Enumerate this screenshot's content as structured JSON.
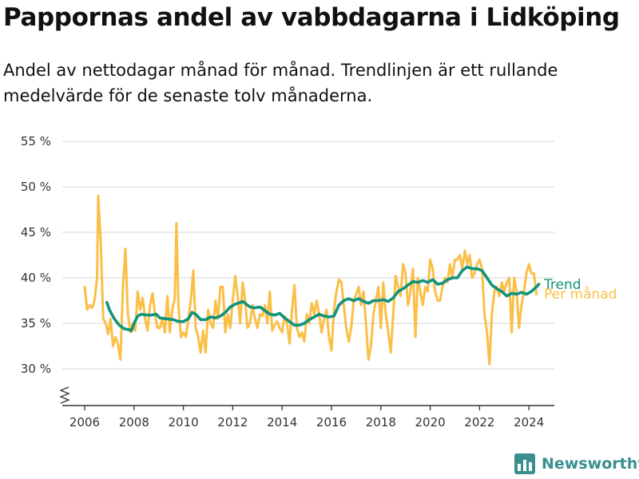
{
  "title": "Pappornas andel av vabbdagarna i Lidköping",
  "subtitle": "Andel av nettodagar månad för månad. Trendlinjen är ett rullande medelvärde för de senaste tolv månaderna.",
  "brand": "Newsworthy",
  "colors": {
    "monthly": "#fbbf47",
    "trend": "#12937c",
    "grid": "#dddddd",
    "axis": "#333333",
    "brand": "#3a8f8f"
  },
  "chart_data": {
    "type": "line",
    "title": "Pappornas andel av vabbdagarna i Lidköping",
    "xlabel": "",
    "ylabel": "",
    "ylim": [
      30,
      55
    ],
    "y_ticks": [
      30,
      35,
      40,
      45,
      50,
      55
    ],
    "y_tick_labels": [
      "30 %",
      "35 %",
      "40 %",
      "45 %",
      "50 %",
      "55 %"
    ],
    "x_ticks": [
      2006,
      2008,
      2010,
      2012,
      2014,
      2016,
      2018,
      2020,
      2022,
      2024
    ],
    "x_tick_labels": [
      "2006",
      "2008",
      "2010",
      "2012",
      "2014",
      "2016",
      "2018",
      "2020",
      "2022",
      "2024"
    ],
    "grid": true,
    "y_axis_break": true,
    "legend_position": "right",
    "series": [
      {
        "name": "Per månad",
        "color": "#fbbf47",
        "points": [
          [
            2006.0,
            39.0
          ],
          [
            2006.1,
            36.5
          ],
          [
            2006.2,
            37.0
          ],
          [
            2006.3,
            36.7
          ],
          [
            2006.4,
            37.5
          ],
          [
            2006.5,
            40.0
          ],
          [
            2006.55,
            49.0
          ],
          [
            2006.65,
            44.0
          ],
          [
            2006.75,
            35.5
          ],
          [
            2006.85,
            35.0
          ],
          [
            2006.95,
            33.8
          ],
          [
            2007.05,
            35.5
          ],
          [
            2007.15,
            32.5
          ],
          [
            2007.25,
            33.5
          ],
          [
            2007.35,
            32.7
          ],
          [
            2007.45,
            31.0
          ],
          [
            2007.55,
            39.0
          ],
          [
            2007.65,
            43.2
          ],
          [
            2007.75,
            36.0
          ],
          [
            2007.85,
            34.0
          ],
          [
            2007.95,
            35.0
          ],
          [
            2008.05,
            34.2
          ],
          [
            2008.15,
            38.5
          ],
          [
            2008.25,
            36.5
          ],
          [
            2008.35,
            37.8
          ],
          [
            2008.45,
            35.5
          ],
          [
            2008.55,
            34.2
          ],
          [
            2008.65,
            37.0
          ],
          [
            2008.75,
            38.3
          ],
          [
            2008.85,
            36.0
          ],
          [
            2008.95,
            34.5
          ],
          [
            2009.05,
            34.5
          ],
          [
            2009.15,
            35.5
          ],
          [
            2009.25,
            34.0
          ],
          [
            2009.35,
            38.0
          ],
          [
            2009.45,
            34.0
          ],
          [
            2009.55,
            36.5
          ],
          [
            2009.65,
            37.8
          ],
          [
            2009.72,
            46.0
          ],
          [
            2009.8,
            37.0
          ],
          [
            2009.9,
            33.5
          ],
          [
            2010.0,
            34.0
          ],
          [
            2010.1,
            33.5
          ],
          [
            2010.2,
            35.5
          ],
          [
            2010.3,
            37.5
          ],
          [
            2010.4,
            40.8
          ],
          [
            2010.5,
            34.5
          ],
          [
            2010.6,
            33.5
          ],
          [
            2010.7,
            31.8
          ],
          [
            2010.8,
            34.2
          ],
          [
            2010.9,
            31.8
          ],
          [
            2011.0,
            36.5
          ],
          [
            2011.1,
            35.0
          ],
          [
            2011.2,
            34.5
          ],
          [
            2011.3,
            37.5
          ],
          [
            2011.4,
            35.5
          ],
          [
            2011.5,
            39.0
          ],
          [
            2011.6,
            39.0
          ],
          [
            2011.7,
            34.0
          ],
          [
            2011.8,
            36.0
          ],
          [
            2011.9,
            34.5
          ],
          [
            2012.0,
            37.5
          ],
          [
            2012.1,
            40.2
          ],
          [
            2012.2,
            38.0
          ],
          [
            2012.3,
            35.0
          ],
          [
            2012.4,
            39.5
          ],
          [
            2012.5,
            37.5
          ],
          [
            2012.6,
            34.5
          ],
          [
            2012.7,
            35.0
          ],
          [
            2012.8,
            37.0
          ],
          [
            2012.9,
            35.5
          ],
          [
            2013.0,
            34.5
          ],
          [
            2013.1,
            36.0
          ],
          [
            2013.2,
            35.8
          ],
          [
            2013.3,
            37.0
          ],
          [
            2013.4,
            35.0
          ],
          [
            2013.5,
            38.5
          ],
          [
            2013.6,
            34.2
          ],
          [
            2013.7,
            34.8
          ],
          [
            2013.8,
            35.2
          ],
          [
            2013.9,
            34.5
          ],
          [
            2014.0,
            34.0
          ],
          [
            2014.1,
            35.8
          ],
          [
            2014.2,
            35.0
          ],
          [
            2014.3,
            32.8
          ],
          [
            2014.4,
            36.5
          ],
          [
            2014.5,
            39.2
          ],
          [
            2014.6,
            34.5
          ],
          [
            2014.7,
            33.5
          ],
          [
            2014.8,
            34.0
          ],
          [
            2014.9,
            33.0
          ],
          [
            2015.0,
            36.0
          ],
          [
            2015.1,
            35.0
          ],
          [
            2015.2,
            37.2
          ],
          [
            2015.3,
            36.0
          ],
          [
            2015.4,
            37.5
          ],
          [
            2015.5,
            36.0
          ],
          [
            2015.6,
            34.0
          ],
          [
            2015.7,
            35.5
          ],
          [
            2015.8,
            36.5
          ],
          [
            2015.9,
            33.5
          ],
          [
            2016.0,
            32.0
          ],
          [
            2016.1,
            36.5
          ],
          [
            2016.2,
            38.5
          ],
          [
            2016.3,
            39.8
          ],
          [
            2016.4,
            39.5
          ],
          [
            2016.5,
            37.0
          ],
          [
            2016.6,
            34.5
          ],
          [
            2016.7,
            33.0
          ],
          [
            2016.8,
            34.5
          ],
          [
            2016.9,
            37.5
          ],
          [
            2017.0,
            38.2
          ],
          [
            2017.1,
            39.0
          ],
          [
            2017.2,
            37.0
          ],
          [
            2017.3,
            38.5
          ],
          [
            2017.4,
            34.8
          ],
          [
            2017.5,
            31.0
          ],
          [
            2017.6,
            32.5
          ],
          [
            2017.7,
            36.0
          ],
          [
            2017.8,
            37.5
          ],
          [
            2017.9,
            39.0
          ],
          [
            2018.0,
            34.5
          ],
          [
            2018.1,
            39.5
          ],
          [
            2018.2,
            36.0
          ],
          [
            2018.3,
            34.0
          ],
          [
            2018.4,
            31.8
          ],
          [
            2018.5,
            36.0
          ],
          [
            2018.6,
            40.2
          ],
          [
            2018.7,
            39.0
          ],
          [
            2018.8,
            38.0
          ],
          [
            2018.9,
            41.5
          ],
          [
            2019.0,
            40.5
          ],
          [
            2019.1,
            37.0
          ],
          [
            2019.2,
            38.5
          ],
          [
            2019.3,
            41.0
          ],
          [
            2019.4,
            33.5
          ],
          [
            2019.5,
            40.0
          ],
          [
            2019.6,
            38.5
          ],
          [
            2019.7,
            37.0
          ],
          [
            2019.8,
            39.0
          ],
          [
            2019.9,
            38.5
          ],
          [
            2020.0,
            42.0
          ],
          [
            2020.1,
            41.0
          ],
          [
            2020.2,
            38.5
          ],
          [
            2020.3,
            37.5
          ],
          [
            2020.4,
            37.5
          ],
          [
            2020.5,
            39.0
          ],
          [
            2020.6,
            40.0
          ],
          [
            2020.7,
            39.5
          ],
          [
            2020.8,
            41.5
          ],
          [
            2020.9,
            40.0
          ],
          [
            2021.0,
            42.0
          ],
          [
            2021.1,
            42.0
          ],
          [
            2021.2,
            42.5
          ],
          [
            2021.3,
            41.0
          ],
          [
            2021.4,
            43.0
          ],
          [
            2021.5,
            41.5
          ],
          [
            2021.6,
            42.5
          ],
          [
            2021.7,
            40.0
          ],
          [
            2021.8,
            40.5
          ],
          [
            2021.9,
            41.5
          ],
          [
            2022.0,
            42.0
          ],
          [
            2022.1,
            41.0
          ],
          [
            2022.2,
            36.0
          ],
          [
            2022.3,
            34.0
          ],
          [
            2022.4,
            30.5
          ],
          [
            2022.5,
            36.0
          ],
          [
            2022.6,
            38.5
          ],
          [
            2022.7,
            39.0
          ],
          [
            2022.8,
            38.0
          ],
          [
            2022.9,
            39.5
          ],
          [
            2023.0,
            38.5
          ],
          [
            2023.1,
            39.5
          ],
          [
            2023.2,
            40.0
          ],
          [
            2023.3,
            34.0
          ],
          [
            2023.4,
            40.0
          ],
          [
            2023.5,
            38.5
          ],
          [
            2023.6,
            34.5
          ],
          [
            2023.7,
            37.0
          ],
          [
            2023.8,
            38.5
          ],
          [
            2023.9,
            40.5
          ],
          [
            2024.0,
            41.5
          ],
          [
            2024.1,
            40.5
          ],
          [
            2024.2,
            40.5
          ],
          [
            2024.3,
            38.2
          ]
        ]
      },
      {
        "name": "Trend",
        "color": "#12937c",
        "points": [
          [
            2006.9,
            37.3
          ],
          [
            2007.0,
            36.5
          ],
          [
            2007.2,
            35.5
          ],
          [
            2007.4,
            34.8
          ],
          [
            2007.6,
            34.4
          ],
          [
            2007.8,
            34.3
          ],
          [
            2007.9,
            34.2
          ],
          [
            2008.0,
            35.0
          ],
          [
            2008.15,
            35.8
          ],
          [
            2008.3,
            36.0
          ],
          [
            2008.5,
            35.9
          ],
          [
            2008.7,
            35.9
          ],
          [
            2008.9,
            36.0
          ],
          [
            2009.05,
            35.6
          ],
          [
            2009.3,
            35.5
          ],
          [
            2009.6,
            35.4
          ],
          [
            2009.8,
            35.2
          ],
          [
            2010.0,
            35.2
          ],
          [
            2010.2,
            35.5
          ],
          [
            2010.35,
            36.2
          ],
          [
            2010.5,
            36.0
          ],
          [
            2010.7,
            35.4
          ],
          [
            2010.9,
            35.4
          ],
          [
            2011.1,
            35.7
          ],
          [
            2011.3,
            35.6
          ],
          [
            2011.5,
            35.8
          ],
          [
            2011.7,
            36.2
          ],
          [
            2011.9,
            36.8
          ],
          [
            2012.1,
            37.1
          ],
          [
            2012.3,
            37.3
          ],
          [
            2012.4,
            37.4
          ],
          [
            2012.5,
            37.2
          ],
          [
            2012.7,
            36.8
          ],
          [
            2012.9,
            36.7
          ],
          [
            2013.1,
            36.8
          ],
          [
            2013.3,
            36.4
          ],
          [
            2013.5,
            36.0
          ],
          [
            2013.7,
            35.9
          ],
          [
            2013.9,
            36.1
          ],
          [
            2014.1,
            35.6
          ],
          [
            2014.3,
            35.2
          ],
          [
            2014.5,
            34.8
          ],
          [
            2014.7,
            34.8
          ],
          [
            2014.9,
            35.0
          ],
          [
            2015.1,
            35.4
          ],
          [
            2015.3,
            35.7
          ],
          [
            2015.5,
            36.0
          ],
          [
            2015.7,
            35.8
          ],
          [
            2015.9,
            35.7
          ],
          [
            2016.1,
            35.8
          ],
          [
            2016.3,
            37.0
          ],
          [
            2016.5,
            37.5
          ],
          [
            2016.7,
            37.7
          ],
          [
            2016.9,
            37.5
          ],
          [
            2017.1,
            37.7
          ],
          [
            2017.3,
            37.4
          ],
          [
            2017.5,
            37.2
          ],
          [
            2017.7,
            37.5
          ],
          [
            2017.9,
            37.5
          ],
          [
            2018.1,
            37.6
          ],
          [
            2018.3,
            37.4
          ],
          [
            2018.5,
            37.8
          ],
          [
            2018.7,
            38.5
          ],
          [
            2018.9,
            38.8
          ],
          [
            2019.1,
            39.2
          ],
          [
            2019.3,
            39.6
          ],
          [
            2019.5,
            39.5
          ],
          [
            2019.7,
            39.7
          ],
          [
            2019.9,
            39.5
          ],
          [
            2020.1,
            39.8
          ],
          [
            2020.3,
            39.3
          ],
          [
            2020.5,
            39.4
          ],
          [
            2020.7,
            39.8
          ],
          [
            2020.9,
            40.0
          ],
          [
            2021.1,
            40.0
          ],
          [
            2021.3,
            40.8
          ],
          [
            2021.5,
            41.2
          ],
          [
            2021.7,
            41.0
          ],
          [
            2021.9,
            41.0
          ],
          [
            2022.1,
            40.8
          ],
          [
            2022.3,
            40.0
          ],
          [
            2022.5,
            39.2
          ],
          [
            2022.7,
            38.8
          ],
          [
            2022.9,
            38.5
          ],
          [
            2023.1,
            38.0
          ],
          [
            2023.3,
            38.3
          ],
          [
            2023.5,
            38.2
          ],
          [
            2023.7,
            38.4
          ],
          [
            2023.9,
            38.2
          ],
          [
            2024.1,
            38.5
          ],
          [
            2024.3,
            39.0
          ],
          [
            2024.4,
            39.3
          ]
        ]
      }
    ]
  }
}
